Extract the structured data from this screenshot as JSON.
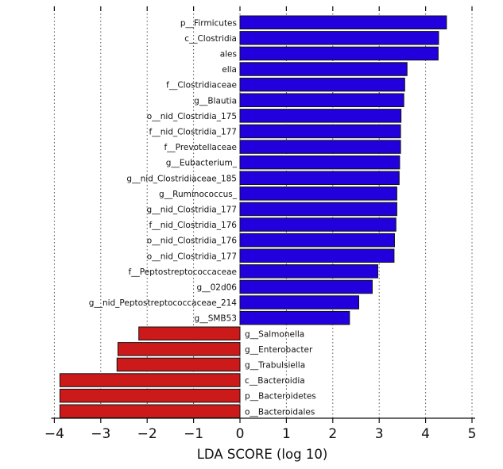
{
  "chart_data": {
    "type": "bar",
    "orientation": "horizontal",
    "xlabel": "LDA SCORE (log 10)",
    "xlim": [
      -4,
      5
    ],
    "xticks": [
      "−4",
      "−3",
      "−2",
      "−1",
      "0",
      "1",
      "2",
      "3",
      "4",
      "5"
    ],
    "grid": "vertical dotted",
    "series": [
      {
        "color": "#2200dd",
        "categories": [
          "p__Firmicutes",
          "c__Clostridia",
          "ales",
          "ella",
          "f__Clostridiaceae",
          "g__Blautia",
          "o__nid_Clostridia_175",
          "f__nid_Clostridia_177",
          "f__Prevotellaceae",
          "g__Eubacterium_",
          "g__nid_Clostridiaceae_185",
          "g__Ruminococcus_",
          "g__nid_Clostridia_177",
          "f__nid_Clostridia_176",
          "o__nid_Clostridia_176",
          "o__nid_Clostridia_177",
          "f__Peptostreptococcaceae",
          "g__02d06",
          "g__nid_Peptostreptococcaceae_214",
          "g__SMB53"
        ],
        "values": [
          4.45,
          4.28,
          4.27,
          3.6,
          3.55,
          3.53,
          3.47,
          3.46,
          3.46,
          3.44,
          3.43,
          3.38,
          3.38,
          3.36,
          3.33,
          3.32,
          2.97,
          2.85,
          2.56,
          2.36
        ]
      },
      {
        "color": "#cc1a1a",
        "categories": [
          "g__Salmonella",
          "g__Enterobacter",
          "g__Trabulsiella",
          "c__Bacteroidia",
          "p__Bacteroidetes",
          "o__Bacteroidales"
        ],
        "values": [
          -2.18,
          -2.63,
          -2.65,
          -3.88,
          -3.88,
          -3.88
        ]
      }
    ]
  }
}
